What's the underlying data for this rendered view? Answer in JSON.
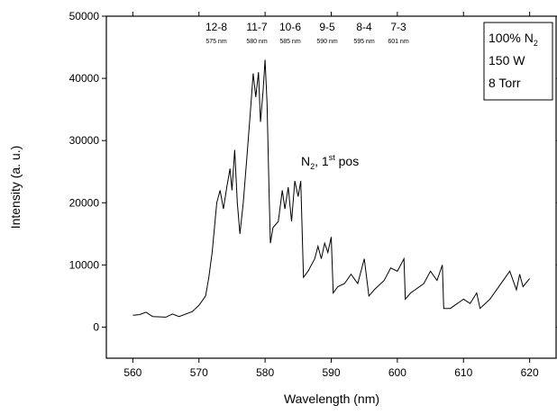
{
  "chart_data": {
    "type": "line",
    "xlabel": "Wavelength (nm)",
    "ylabel": "Intensity (a. u.)",
    "xlim": [
      556,
      624
    ],
    "ylim": [
      -5000,
      50000
    ],
    "xticks": [
      560,
      570,
      580,
      590,
      600,
      610,
      620
    ],
    "yticks": [
      0,
      10000,
      20000,
      30000,
      40000,
      50000
    ],
    "band_labels": [
      {
        "label": "12-8",
        "wavelength": "575 nm"
      },
      {
        "label": "11-7",
        "wavelength": "580 nm"
      },
      {
        "label": "10-6",
        "wavelength": "585 nm"
      },
      {
        "label": "9-5",
        "wavelength": "590 nm"
      },
      {
        "label": "8-4",
        "wavelength": "595 nm"
      },
      {
        "label": "7-3",
        "wavelength": "601 nm"
      }
    ],
    "species_label": {
      "text": "N",
      "sub": "2",
      "mid": ", 1",
      "sup": "st",
      "tail": " pos"
    },
    "conditions": [
      {
        "text": "100% N",
        "sub": "2"
      },
      {
        "text": "150 W"
      },
      {
        "text": "8 Torr"
      }
    ],
    "x": [
      560,
      561,
      562,
      563,
      565,
      566,
      567,
      569,
      570,
      571,
      571.5,
      572,
      572.7,
      573.2,
      573.7,
      574.2,
      574.7,
      575,
      575.4,
      575.8,
      576.2,
      576.7,
      577.3,
      577.8,
      578.2,
      578.6,
      579,
      579.3,
      579.7,
      580,
      580.3,
      580.6,
      580.8,
      581.2,
      582,
      582.6,
      583,
      583.5,
      584,
      584.5,
      585,
      585.4,
      585.8,
      586.5,
      587.5,
      588,
      588.5,
      589,
      589.5,
      590,
      590.3,
      591,
      592,
      593,
      594,
      595,
      595.7,
      596.5,
      598,
      599,
      600,
      601,
      601.2,
      602,
      604,
      605,
      606,
      606.8,
      607,
      608,
      610,
      611,
      612,
      612.5,
      614,
      616,
      617,
      618,
      618.5,
      619,
      620
    ],
    "series": [
      {
        "color": "#000000",
        "values": [
          1900,
          2000,
          2400,
          1700,
          1600,
          2100,
          1700,
          2500,
          3500,
          5000,
          8000,
          12000,
          20000,
          22000,
          19000,
          22500,
          25500,
          22000,
          28500,
          20000,
          15000,
          20000,
          28000,
          35000,
          40800,
          37000,
          41000,
          33000,
          38000,
          43000,
          36000,
          22000,
          13500,
          16000,
          17000,
          22000,
          19000,
          22500,
          17000,
          23500,
          21000,
          23500,
          8000,
          9000,
          11000,
          13000,
          11000,
          13500,
          12000,
          14500,
          5500,
          6500,
          7000,
          8500,
          7000,
          11000,
          5000,
          6000,
          7500,
          9500,
          9000,
          11000,
          4500,
          5500,
          7000,
          9000,
          7500,
          10000,
          3000,
          3000,
          4500,
          3800,
          5500,
          3000,
          4500,
          7500,
          9000,
          6000,
          8500,
          6500,
          7800
        ]
      }
    ]
  }
}
